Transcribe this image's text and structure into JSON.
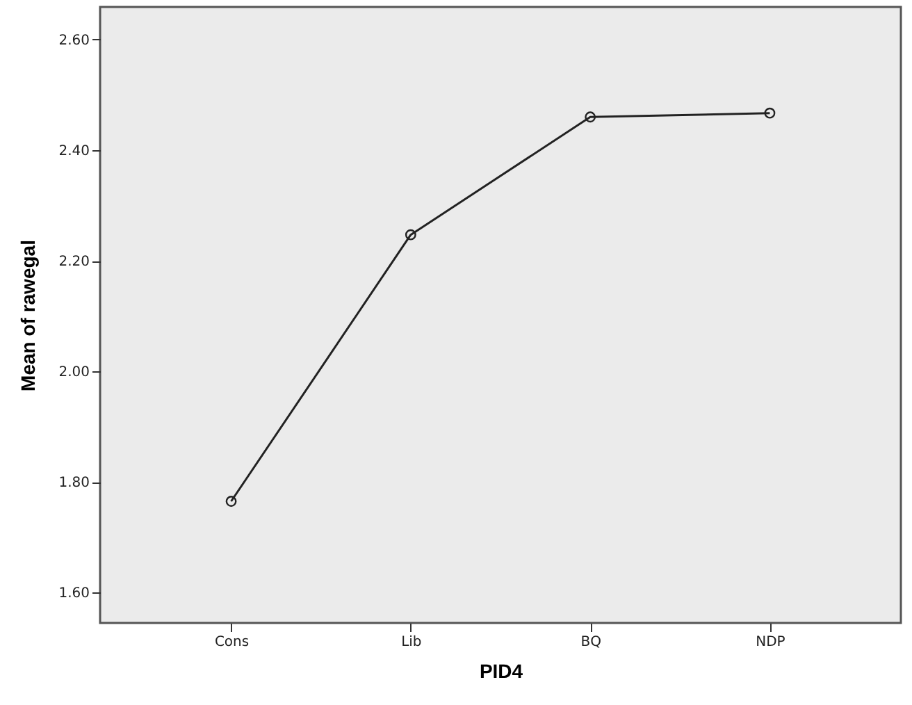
{
  "chart_data": {
    "type": "line",
    "xlabel": "PID4",
    "ylabel": "Mean of rawegal",
    "categories": [
      "Cons",
      "Lib",
      "BQ",
      "NDP"
    ],
    "values": [
      1.765,
      2.247,
      2.46,
      2.467
    ],
    "color": "#222222",
    "marker": "circle",
    "line_style": "solid",
    "grid": false,
    "ylim": [
      1.545,
      2.659
    ],
    "yticks": [
      {
        "value": 1.6,
        "label": "1.60"
      },
      {
        "value": 1.8,
        "label": "1.80"
      },
      {
        "value": 2.0,
        "label": "2.00"
      },
      {
        "value": 2.2,
        "label": "2.20"
      },
      {
        "value": 2.4,
        "label": "2.40"
      },
      {
        "value": 2.6,
        "label": "2.60"
      }
    ]
  }
}
